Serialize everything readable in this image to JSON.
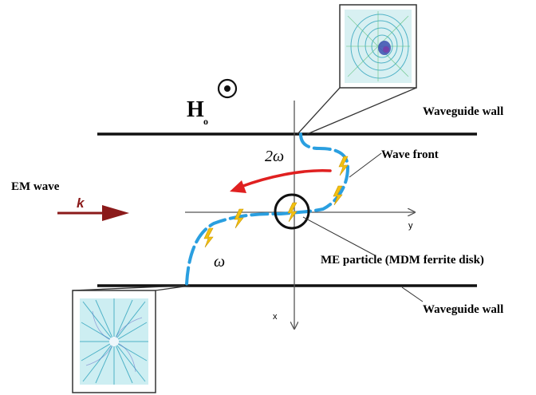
{
  "labels": {
    "waveguide_wall_top": "Waveguide wall",
    "waveguide_wall_bottom": "Waveguide wall",
    "wave_front": "Wave front",
    "em_wave": "EM wave",
    "k": "k",
    "two_omega": "2ω",
    "omega": "ω",
    "me_particle": "ME particle (MDM ferrite disk)",
    "axis_y": "y",
    "axis_x": "x",
    "h_field": "H",
    "h_field_sub": "o"
  },
  "colors": {
    "wave_front": "#2a9fe0",
    "em_arrow": "#8b1a1a",
    "rotation_arrow": "#e02020",
    "marker": "#f2c012",
    "inset_field": "#3aa8c0"
  }
}
